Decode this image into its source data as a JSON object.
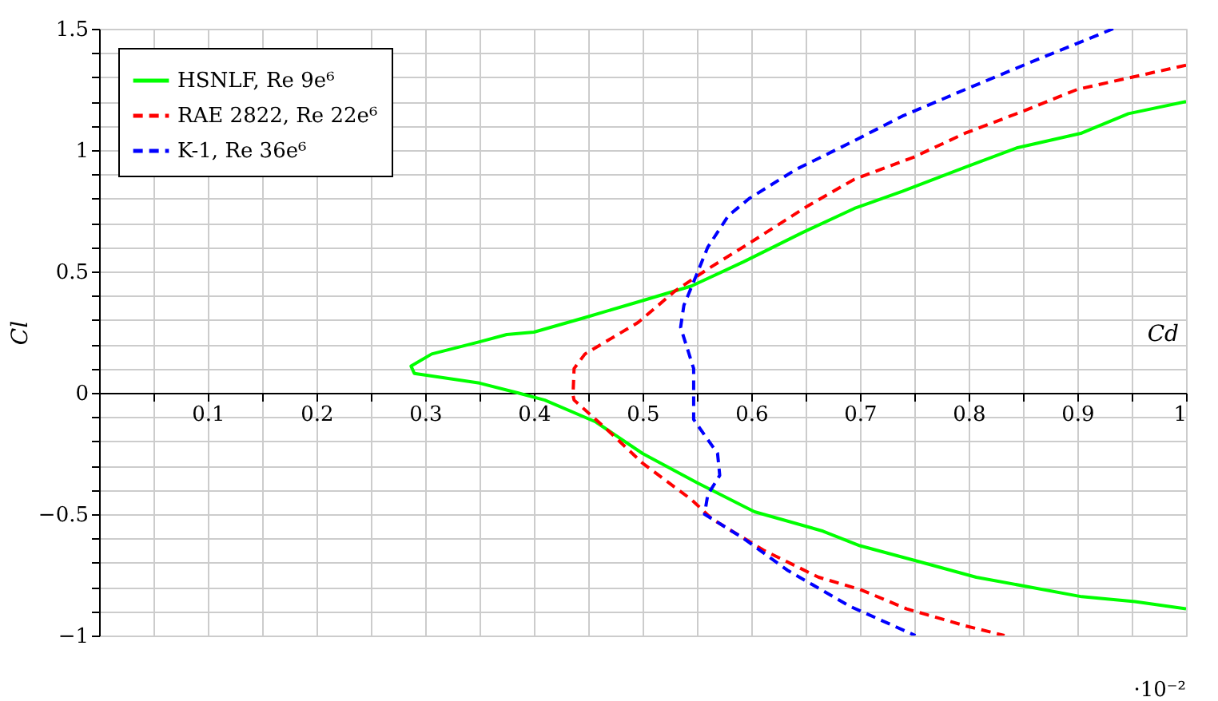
{
  "chart_data": {
    "type": "line",
    "xlabel": "Cd",
    "ylabel": "Cl",
    "annotations": [
      "·10⁻²"
    ],
    "xlim": [
      0,
      1
    ],
    "ylim": [
      -1,
      1.5
    ],
    "xticks": [
      {
        "value": 0.05,
        "label": null
      },
      0.1,
      {
        "value": 0.15,
        "label": null
      },
      0.2,
      {
        "value": 0.25,
        "label": null
      },
      0.3,
      {
        "value": 0.35,
        "label": null
      },
      0.4,
      {
        "value": 0.45,
        "label": null
      },
      0.5,
      {
        "value": 0.55,
        "label": null
      },
      0.6,
      {
        "value": 0.65,
        "label": null
      },
      0.7,
      {
        "value": 0.75,
        "label": null
      },
      0.8,
      {
        "value": 0.85,
        "label": null
      },
      0.9,
      {
        "value": 0.95,
        "label": null
      },
      1
    ],
    "yticks": [
      {
        "value": -1,
        "label": "−1"
      },
      {
        "value": -0.9,
        "label": null
      },
      {
        "value": -0.8,
        "label": null
      },
      {
        "value": -0.7,
        "label": null
      },
      {
        "value": -0.6,
        "label": null
      },
      {
        "value": -0.5,
        "label": "−0.5"
      },
      {
        "value": -0.4,
        "label": null
      },
      {
        "value": -0.3,
        "label": null
      },
      {
        "value": -0.2,
        "label": null
      },
      {
        "value": -0.1,
        "label": null
      },
      0,
      {
        "value": 0.1,
        "label": null
      },
      {
        "value": 0.2,
        "label": null
      },
      {
        "value": 0.3,
        "label": null
      },
      {
        "value": 0.4,
        "label": null
      },
      0.5,
      {
        "value": 0.6,
        "label": null
      },
      {
        "value": 0.7,
        "label": null
      },
      {
        "value": 0.8,
        "label": null
      },
      {
        "value": 0.9,
        "label": null
      },
      1,
      {
        "value": 1.1,
        "label": null
      },
      {
        "value": 1.2,
        "label": null
      },
      {
        "value": 1.3,
        "label": null
      },
      {
        "value": 1.4,
        "label": null
      },
      1.5
    ],
    "grid": true,
    "legend": "top left",
    "marker": "none",
    "series": [
      {
        "name": "HSNLF, Re 9e⁶",
        "color": "#00ff00",
        "line_style": "solid",
        "x": [
          1.0,
          0.947,
          0.904,
          0.845,
          0.797,
          0.739,
          0.695,
          0.647,
          0.593,
          0.545,
          0.5,
          0.447,
          0.4,
          0.375,
          0.35,
          0.306,
          0.287,
          0.29,
          0.35,
          0.385,
          0.41,
          0.457,
          0.5,
          0.55,
          0.603,
          0.666,
          0.7,
          0.758,
          0.807,
          0.856,
          0.904,
          0.953,
          1.0
        ],
        "values": [
          1.2,
          1.15,
          1.07,
          1.01,
          0.93,
          0.83,
          0.76,
          0.66,
          0.54,
          0.44,
          0.38,
          0.31,
          0.25,
          0.24,
          0.21,
          0.16,
          0.11,
          0.08,
          0.04,
          0.0,
          -0.03,
          -0.12,
          -0.25,
          -0.37,
          -0.49,
          -0.57,
          -0.63,
          -0.7,
          -0.76,
          -0.8,
          -0.84,
          -0.86,
          -0.89
        ]
      },
      {
        "name": "RAE 2822, Re 22e⁶",
        "color": "#ff0000",
        "line_style": "dashed",
        "x": [
          1.0,
          0.9,
          0.85,
          0.797,
          0.749,
          0.695,
          0.652,
          0.603,
          0.56,
          0.53,
          0.496,
          0.447,
          0.437,
          0.436,
          0.437,
          0.467,
          0.5,
          0.545,
          0.564,
          0.612,
          0.662,
          0.7,
          0.743,
          0.797,
          0.833
        ],
        "values": [
          1.35,
          1.25,
          1.16,
          1.07,
          0.97,
          0.88,
          0.77,
          0.63,
          0.51,
          0.42,
          0.29,
          0.16,
          0.1,
          -0.01,
          -0.03,
          -0.15,
          -0.29,
          -0.44,
          -0.52,
          -0.65,
          -0.76,
          -0.81,
          -0.89,
          -0.96,
          -1.0
        ]
      },
      {
        "name": "K-1, Re 36e⁶",
        "color": "#0000ff",
        "line_style": "dashed",
        "x": [
          0.933,
          0.856,
          0.797,
          0.739,
          0.691,
          0.641,
          0.598,
          0.579,
          0.56,
          0.55,
          0.538,
          0.535,
          0.547,
          0.547,
          0.547,
          0.569,
          0.571,
          0.56,
          0.557,
          0.593,
          0.633,
          0.691,
          0.751
        ],
        "values": [
          1.5,
          1.36,
          1.25,
          1.14,
          1.03,
          0.92,
          0.8,
          0.73,
          0.6,
          0.49,
          0.36,
          0.27,
          0.1,
          -0.01,
          -0.11,
          -0.25,
          -0.34,
          -0.42,
          -0.5,
          -0.6,
          -0.73,
          -0.88,
          -1.0
        ]
      }
    ]
  }
}
